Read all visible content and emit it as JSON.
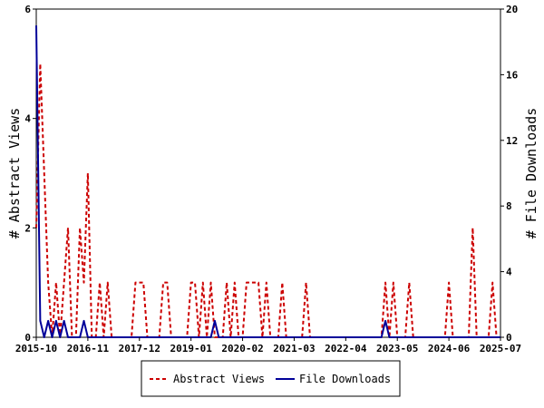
{
  "chart_data": {
    "type": "line",
    "title": "",
    "left_axis_label": "# Abstract Views",
    "right_axis_label": "# File Downloads",
    "left_ylim": [
      0,
      6
    ],
    "right_ylim": [
      0,
      20
    ],
    "left_yticks": [
      "0",
      "2",
      "4",
      "6"
    ],
    "right_yticks": [
      "0",
      "4",
      "8",
      "12",
      "16",
      "20"
    ],
    "x_range": [
      "2015-10",
      "2025-07"
    ],
    "x_tick_labels": [
      "2015-10",
      "2016-11",
      "2017-12",
      "2019-01",
      "2020-02",
      "2021-03",
      "2022-04",
      "2023-05",
      "2024-06",
      "2025-07"
    ],
    "legend_position": "bottom-center",
    "colors": {
      "abstract_views": "#cc0000",
      "file_downloads": "#000099"
    },
    "series": [
      {
        "name": "Abstract Views",
        "axis": "left",
        "style": "dashed",
        "x": [
          "2015-10",
          "2015-11",
          "2015-12",
          "2016-01",
          "2016-02",
          "2016-03",
          "2016-04",
          "2016-05",
          "2016-06",
          "2016-07",
          "2016-08",
          "2016-09",
          "2016-10",
          "2016-11",
          "2016-12",
          "2017-01",
          "2017-02",
          "2017-03",
          "2017-04",
          "2017-05",
          "2017-06",
          "2017-07",
          "2017-08",
          "2017-09",
          "2017-10",
          "2017-11",
          "2017-12",
          "2018-01",
          "2018-02",
          "2018-03",
          "2018-04",
          "2018-05",
          "2018-06",
          "2018-07",
          "2018-08",
          "2018-09",
          "2018-10",
          "2018-11",
          "2018-12",
          "2019-01",
          "2019-02",
          "2019-03",
          "2019-04",
          "2019-05",
          "2019-06",
          "2019-07",
          "2019-08",
          "2019-09",
          "2019-10",
          "2019-11",
          "2019-12",
          "2020-01",
          "2020-02",
          "2020-03",
          "2020-04",
          "2020-05",
          "2020-06",
          "2020-07",
          "2020-08",
          "2020-09",
          "2020-10",
          "2020-11",
          "2020-12",
          "2021-01",
          "2021-02",
          "2021-03",
          "2021-04",
          "2021-05",
          "2021-06",
          "2021-07",
          "2021-08",
          "2021-09",
          "2021-10",
          "2021-11",
          "2021-12",
          "2022-01",
          "2022-02",
          "2022-03",
          "2022-04",
          "2022-05",
          "2022-06",
          "2022-07",
          "2022-08",
          "2022-09",
          "2022-10",
          "2022-11",
          "2022-12",
          "2023-01",
          "2023-02",
          "2023-03",
          "2023-04",
          "2023-05",
          "2023-06",
          "2023-07",
          "2023-08",
          "2023-09",
          "2023-10",
          "2023-11",
          "2023-12",
          "2024-01",
          "2024-02",
          "2024-03",
          "2024-04",
          "2024-05",
          "2024-06",
          "2024-07",
          "2024-08",
          "2024-09",
          "2024-10",
          "2024-11",
          "2024-12",
          "2025-01",
          "2025-02",
          "2025-03",
          "2025-04",
          "2025-05",
          "2025-06",
          "2025-07"
        ],
        "values": [
          2,
          5,
          3,
          1,
          0,
          1,
          0,
          1,
          2,
          0,
          0,
          2,
          1,
          3,
          0,
          0,
          1,
          0,
          1,
          0,
          0,
          0,
          0,
          0,
          0,
          1,
          1,
          1,
          0,
          0,
          0,
          0,
          1,
          1,
          0,
          0,
          0,
          0,
          0,
          1,
          1,
          0,
          1,
          0,
          1,
          0,
          0,
          0,
          1,
          0,
          1,
          0,
          0,
          1,
          1,
          1,
          1,
          0,
          1,
          0,
          0,
          0,
          1,
          0,
          0,
          0,
          0,
          0,
          1,
          0,
          0,
          0,
          0,
          0,
          0,
          0,
          0,
          0,
          0,
          0,
          0,
          0,
          0,
          0,
          0,
          0,
          0,
          0,
          1,
          0,
          1,
          0,
          0,
          0,
          1,
          0,
          0,
          0,
          0,
          0,
          0,
          0,
          0,
          0,
          1,
          0,
          0,
          0,
          0,
          0,
          2,
          0,
          0,
          0,
          0,
          1,
          0,
          0
        ]
      },
      {
        "name": "File Downloads",
        "axis": "right",
        "style": "solid",
        "x": [
          "2015-10",
          "2015-11",
          "2015-12",
          "2016-01",
          "2016-02",
          "2016-03",
          "2016-04",
          "2016-05",
          "2016-06",
          "2016-07",
          "2016-08",
          "2016-09",
          "2016-10",
          "2016-11",
          "2016-12",
          "2017-01",
          "2017-02",
          "2017-03",
          "2017-04",
          "2017-05",
          "2017-06",
          "2017-07",
          "2017-08",
          "2017-09",
          "2017-10",
          "2017-11",
          "2017-12",
          "2018-01",
          "2018-02",
          "2018-03",
          "2018-04",
          "2018-05",
          "2018-06",
          "2018-07",
          "2018-08",
          "2018-09",
          "2018-10",
          "2018-11",
          "2018-12",
          "2019-01",
          "2019-02",
          "2019-03",
          "2019-04",
          "2019-05",
          "2019-06",
          "2019-07",
          "2019-08",
          "2019-09",
          "2019-10",
          "2019-11",
          "2019-12",
          "2020-01",
          "2020-02",
          "2020-03",
          "2020-04",
          "2020-05",
          "2020-06",
          "2020-07",
          "2020-08",
          "2020-09",
          "2020-10",
          "2020-11",
          "2020-12",
          "2021-01",
          "2021-02",
          "2021-03",
          "2021-04",
          "2021-05",
          "2021-06",
          "2021-07",
          "2021-08",
          "2021-09",
          "2021-10",
          "2021-11",
          "2021-12",
          "2022-01",
          "2022-02",
          "2022-03",
          "2022-04",
          "2022-05",
          "2022-06",
          "2022-07",
          "2022-08",
          "2022-09",
          "2022-10",
          "2022-11",
          "2022-12",
          "2023-01",
          "2023-02",
          "2023-03",
          "2023-04",
          "2023-05",
          "2023-06",
          "2023-07",
          "2023-08",
          "2023-09",
          "2023-10",
          "2023-11",
          "2023-12",
          "2024-01",
          "2024-02",
          "2024-03",
          "2024-04",
          "2024-05",
          "2024-06",
          "2024-07",
          "2024-08",
          "2024-09",
          "2024-10",
          "2024-11",
          "2024-12",
          "2025-01",
          "2025-02",
          "2025-03",
          "2025-04",
          "2025-05",
          "2025-06",
          "2025-07"
        ],
        "values": [
          19,
          1,
          0,
          1,
          0,
          1,
          0,
          1,
          0,
          0,
          0,
          0,
          1,
          0,
          0,
          0,
          0,
          0,
          0,
          0,
          0,
          0,
          0,
          0,
          0,
          0,
          0,
          0,
          0,
          0,
          0,
          0,
          0,
          0,
          0,
          0,
          0,
          0,
          0,
          0,
          0,
          0,
          0,
          0,
          0,
          1,
          0,
          0,
          0,
          0,
          0,
          0,
          0,
          0,
          0,
          0,
          0,
          0,
          0,
          0,
          0,
          0,
          0,
          0,
          0,
          0,
          0,
          0,
          0,
          0,
          0,
          0,
          0,
          0,
          0,
          0,
          0,
          0,
          0,
          0,
          0,
          0,
          0,
          0,
          0,
          0,
          0,
          0,
          1,
          0,
          0,
          0,
          0,
          0,
          0,
          0,
          0,
          0,
          0,
          0,
          0,
          0,
          0,
          0,
          0,
          0,
          0,
          0,
          0,
          0,
          0,
          0,
          0,
          0,
          0,
          0,
          0,
          0
        ]
      }
    ]
  }
}
